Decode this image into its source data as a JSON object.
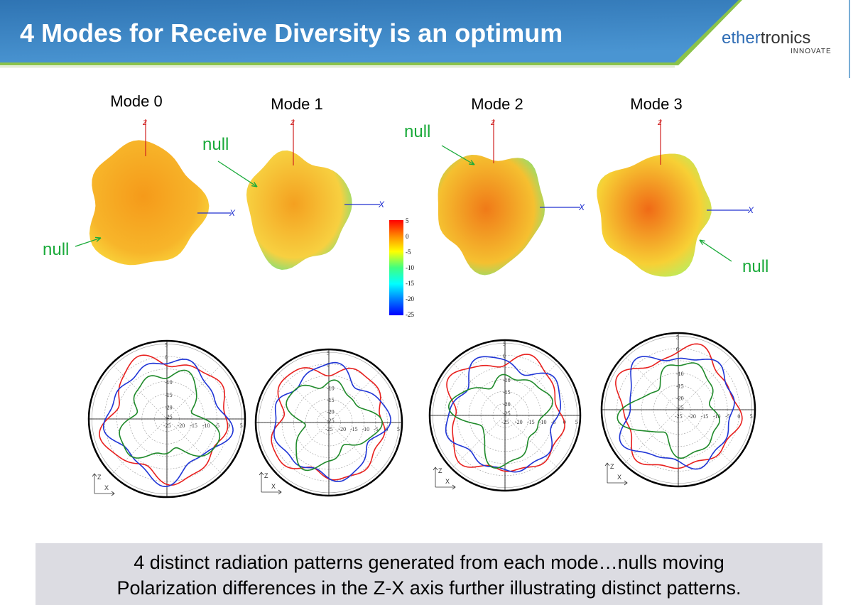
{
  "header": {
    "title": "4 Modes for Receive Diversity is an optimum",
    "logo_part1": "ether",
    "logo_part2": "tronics",
    "logo_tagline": "INNOVATE",
    "band_color": "#3b85c4",
    "accent_color": "#8bc34a"
  },
  "modes": [
    {
      "label": "Mode 0"
    },
    {
      "label": "Mode 1"
    },
    {
      "label": "Mode 2"
    },
    {
      "label": "Mode 3"
    }
  ],
  "nulls": [
    "null",
    "null",
    "null",
    "null"
  ],
  "axes": {
    "z": "Z",
    "x": "X"
  },
  "colorbar": {
    "ticks": [
      "5",
      "0",
      "-5",
      "-10",
      "-15",
      "-20",
      "-25"
    ],
    "colors": [
      "#ff0000",
      "#ff8c00",
      "#ffff00",
      "#00ff80",
      "#00ffff",
      "#0080ff",
      "#0000ff"
    ]
  },
  "polar": {
    "radial_ticks": [
      "5",
      "0",
      "-10",
      "-15",
      "-20",
      "-25"
    ],
    "horizontal_ticks": [
      "-25",
      "-20",
      "-15",
      "-10",
      "-5",
      "0",
      "5"
    ],
    "trace_colors": [
      "#e8201e",
      "#1f35d6",
      "#1f8a2a"
    ]
  },
  "caption": {
    "line1": "4 distinct radiation patterns generated from each mode…nulls moving",
    "line2": "Polarization differences in the Z-X axis further illustrating distinct patterns."
  }
}
